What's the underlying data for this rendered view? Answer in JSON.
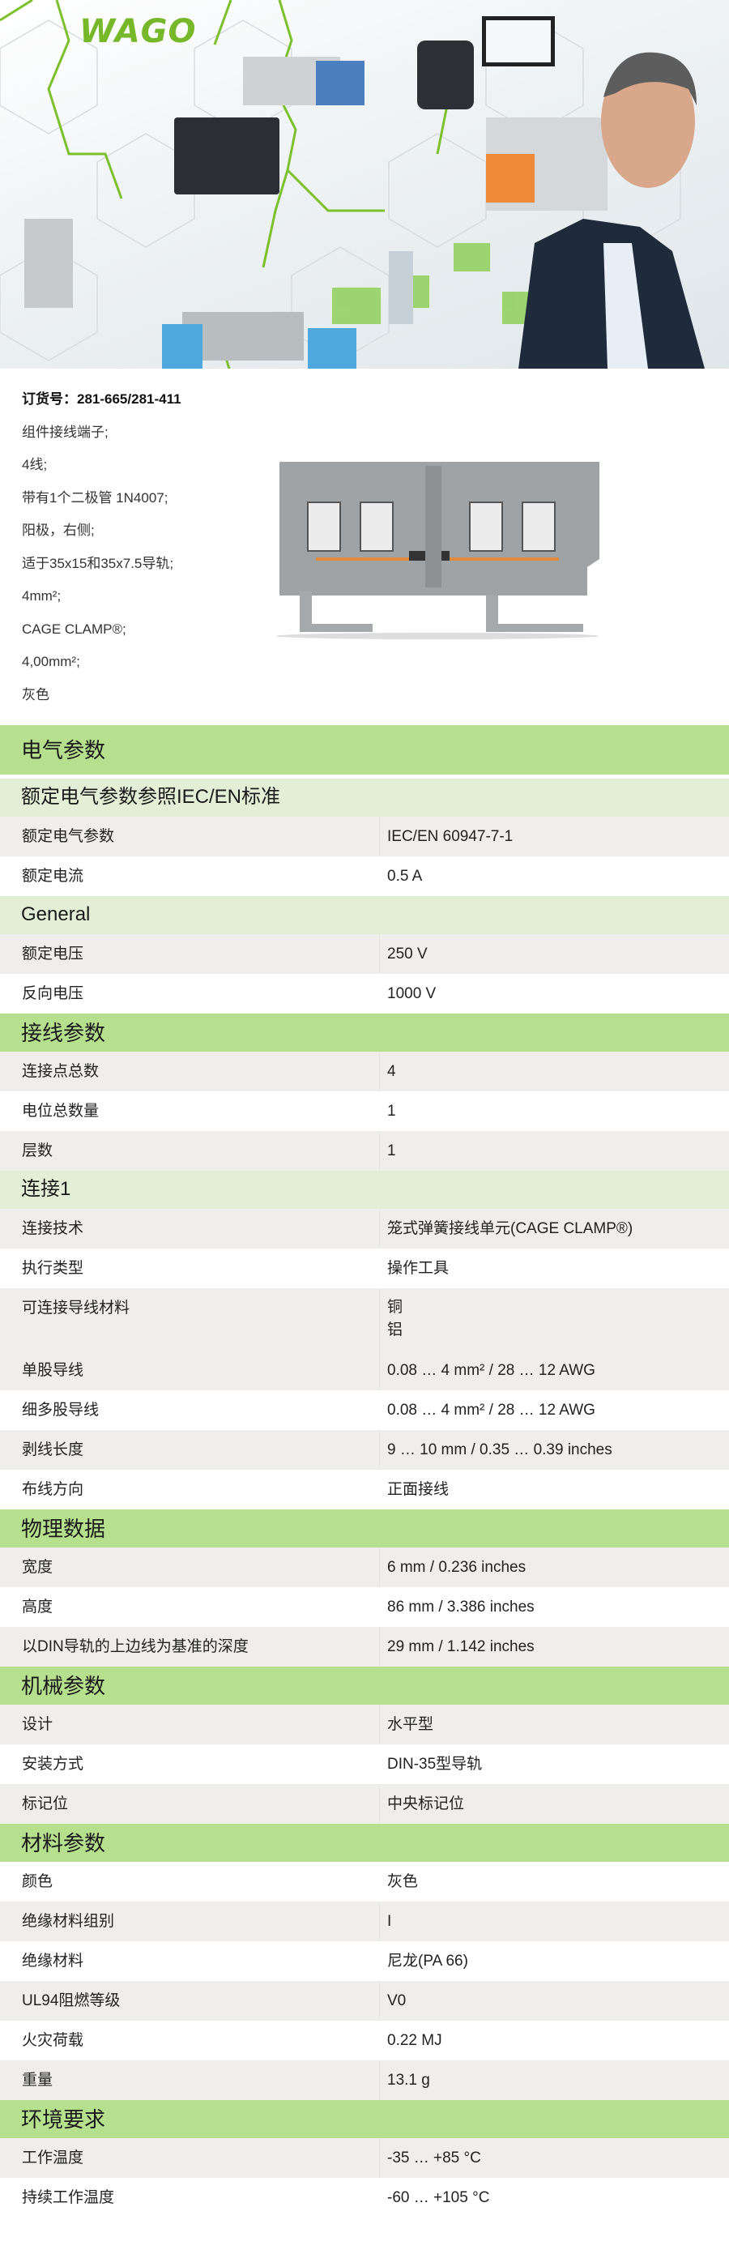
{
  "brand": {
    "logo_text": "WAGO",
    "accent": "#76b82a"
  },
  "product": {
    "order_no": "订货号：281-665/281-411",
    "description": [
      "组件接线端子;",
      "4线;",
      "带有1个二极管 1N4007;",
      "阳极，右侧;",
      "适于35x15和35x7.5导轨;",
      "4mm²;",
      "CAGE CLAMP®;",
      "4,00mm²;",
      "灰色"
    ]
  },
  "colors": {
    "section_header": "#b6df8e",
    "sub_header": "#e2efd6",
    "row_alt": "#efeeec"
  },
  "table": [
    {
      "t": "h",
      "label": "电气参数"
    },
    {
      "t": "s",
      "label": "额定电气参数参照IEC/EN标准"
    },
    {
      "t": "g",
      "label": "额定电气参数",
      "value": "IEC/EN 60947-7-1"
    },
    {
      "t": "w",
      "label": "额定电流",
      "value": "0.5 A"
    },
    {
      "t": "s",
      "label": "General"
    },
    {
      "t": "g",
      "label": "额定电压",
      "value": "250 V"
    },
    {
      "t": "w",
      "label": "反向电压",
      "value": "1000 V"
    },
    {
      "t": "h",
      "label": "接线参数"
    },
    {
      "t": "g",
      "label": "连接点总数",
      "value": "4"
    },
    {
      "t": "w",
      "label": "电位总数量",
      "value": "1"
    },
    {
      "t": "g",
      "label": "层数",
      "value": "1"
    },
    {
      "t": "s",
      "label": "连接1"
    },
    {
      "t": "g",
      "label": "连接技术",
      "value": "笼式弹簧接线单元(CAGE CLAMP®)"
    },
    {
      "t": "w",
      "label": "执行类型",
      "value": "操作工具"
    },
    {
      "t": "g",
      "label": "可连接导线材料",
      "value": "铜\n铝"
    },
    {
      "t": "g",
      "label": "单股导线",
      "value": "0.08 … 4 mm² / 28 … 12 AWG"
    },
    {
      "t": "w",
      "label": "细多股导线",
      "value": "0.08 … 4 mm² / 28 … 12 AWG"
    },
    {
      "t": "g",
      "label": "剥线长度",
      "value": "9 … 10 mm / 0.35 … 0.39 inches"
    },
    {
      "t": "w",
      "label": "布线方向",
      "value": "正面接线"
    },
    {
      "t": "h",
      "label": "物理数据"
    },
    {
      "t": "g",
      "label": "宽度",
      "value": "6 mm / 0.236 inches"
    },
    {
      "t": "w",
      "label": "高度",
      "value": "86 mm / 3.386 inches"
    },
    {
      "t": "g",
      "label": "以DIN导轨的上边线为基准的深度",
      "value": "29 mm / 1.142 inches"
    },
    {
      "t": "h",
      "label": "机械参数"
    },
    {
      "t": "g",
      "label": "设计",
      "value": "水平型"
    },
    {
      "t": "w",
      "label": "安装方式",
      "value": "DIN-35型导轨"
    },
    {
      "t": "g",
      "label": "标记位",
      "value": "中央标记位"
    },
    {
      "t": "h",
      "label": "材料参数"
    },
    {
      "t": "w",
      "label": "颜色",
      "value": "灰色"
    },
    {
      "t": "g",
      "label": "绝缘材料组别",
      "value": "I"
    },
    {
      "t": "w",
      "label": "绝缘材料",
      "value": "尼龙(PA 66)"
    },
    {
      "t": "g",
      "label": "UL94阻燃等级",
      "value": "V0"
    },
    {
      "t": "w",
      "label": "火灾荷载",
      "value": "0.22 MJ"
    },
    {
      "t": "g",
      "label": "重量",
      "value": "13.1 g"
    },
    {
      "t": "h",
      "label": "环境要求"
    },
    {
      "t": "g",
      "label": "工作温度",
      "value": "-35 … +85 °C"
    },
    {
      "t": "w",
      "label": "持续工作温度",
      "value": "-60 … +105 °C"
    }
  ]
}
